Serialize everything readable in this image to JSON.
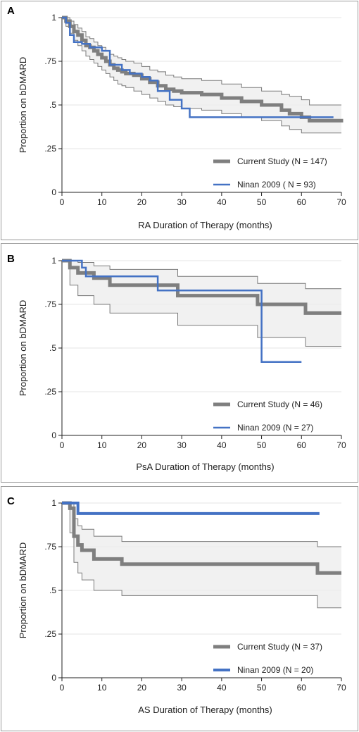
{
  "chart_data": [
    {
      "type": "line",
      "panel": "A",
      "xlabel": "RA Duration of Therapy (months)",
      "ylabel": "Proportion on bDMARD",
      "xlim": [
        0,
        70
      ],
      "ylim": [
        0,
        1
      ],
      "xticks": [
        0,
        10,
        20,
        30,
        40,
        50,
        60,
        70
      ],
      "yticks": [
        0,
        0.25,
        0.5,
        0.75,
        1
      ],
      "ytick_labels": [
        "0",
        ".25",
        ".5",
        ".75",
        "1"
      ],
      "grid": true,
      "legend_position": "bottom-right",
      "series": [
        {
          "name": "Current Study (N = 147)",
          "color": "#7f7f7f",
          "x": [
            0,
            1,
            2,
            3,
            4,
            5,
            6,
            7,
            8,
            9,
            10,
            11,
            12,
            13,
            14,
            15,
            16,
            18,
            20,
            22,
            24,
            26,
            28,
            30,
            35,
            40,
            45,
            50,
            55,
            57,
            60,
            62,
            70
          ],
          "y": [
            1.0,
            0.98,
            0.95,
            0.92,
            0.9,
            0.87,
            0.84,
            0.83,
            0.81,
            0.79,
            0.77,
            0.75,
            0.73,
            0.71,
            0.7,
            0.69,
            0.68,
            0.67,
            0.65,
            0.63,
            0.61,
            0.59,
            0.58,
            0.57,
            0.56,
            0.54,
            0.52,
            0.5,
            0.47,
            0.45,
            0.43,
            0.41,
            0.4
          ],
          "ci_lower": [
            1.0,
            0.95,
            0.91,
            0.87,
            0.84,
            0.81,
            0.78,
            0.76,
            0.74,
            0.72,
            0.7,
            0.68,
            0.66,
            0.64,
            0.62,
            0.61,
            0.6,
            0.58,
            0.56,
            0.54,
            0.52,
            0.5,
            0.49,
            0.48,
            0.47,
            0.45,
            0.43,
            0.41,
            0.38,
            0.36,
            0.34,
            0.34,
            0.34
          ],
          "ci_upper": [
            1.0,
            1.0,
            0.98,
            0.96,
            0.94,
            0.92,
            0.89,
            0.88,
            0.86,
            0.84,
            0.83,
            0.81,
            0.79,
            0.78,
            0.77,
            0.76,
            0.75,
            0.74,
            0.72,
            0.7,
            0.69,
            0.67,
            0.66,
            0.65,
            0.64,
            0.62,
            0.6,
            0.58,
            0.56,
            0.55,
            0.53,
            0.5,
            0.5
          ]
        },
        {
          "name": "Ninan 2009 ( N = 93)",
          "color": "#4472c4",
          "x": [
            0,
            1,
            2,
            3,
            5,
            7,
            10,
            12,
            15,
            17,
            20,
            22,
            24,
            27,
            30,
            32,
            40,
            50,
            68
          ],
          "y": [
            1.0,
            0.97,
            0.9,
            0.86,
            0.85,
            0.83,
            0.81,
            0.73,
            0.7,
            0.68,
            0.66,
            0.64,
            0.58,
            0.53,
            0.48,
            0.43,
            0.43,
            0.43,
            0.43
          ]
        }
      ]
    },
    {
      "type": "line",
      "panel": "B",
      "xlabel": "PsA Duration of Therapy (months)",
      "ylabel": "Proportion on bDMARD",
      "xlim": [
        0,
        70
      ],
      "ylim": [
        0,
        1
      ],
      "xticks": [
        0,
        10,
        20,
        30,
        40,
        50,
        60,
        70
      ],
      "yticks": [
        0,
        0.25,
        0.5,
        0.75,
        1
      ],
      "ytick_labels": [
        "0",
        ".25",
        ".5",
        ".75",
        "1"
      ],
      "grid": true,
      "legend_position": "bottom-right",
      "series": [
        {
          "name": "Current Study (N = 46)",
          "color": "#7f7f7f",
          "x": [
            0,
            2,
            4,
            8,
            12,
            29,
            49,
            61,
            70
          ],
          "y": [
            1.0,
            0.96,
            0.93,
            0.9,
            0.86,
            0.8,
            0.75,
            0.7,
            0.7
          ],
          "ci_lower": [
            1.0,
            0.86,
            0.8,
            0.75,
            0.7,
            0.63,
            0.56,
            0.51,
            0.51
          ],
          "ci_upper": [
            1.0,
            1.0,
            0.99,
            0.97,
            0.95,
            0.91,
            0.87,
            0.84,
            0.84
          ]
        },
        {
          "name": "Ninan 2009 (N = 27)",
          "color": "#4472c4",
          "x": [
            0,
            5,
            6,
            24,
            50,
            60
          ],
          "y": [
            1.0,
            0.96,
            0.91,
            0.83,
            0.42,
            0.42
          ]
        }
      ]
    },
    {
      "type": "line",
      "panel": "C",
      "xlabel": "AS Duration of Therapy (months)",
      "ylabel": "Proportion on bDMARD",
      "xlim": [
        0,
        70
      ],
      "ylim": [
        0,
        1
      ],
      "xticks": [
        0,
        10,
        20,
        30,
        40,
        50,
        60,
        70
      ],
      "yticks": [
        0,
        0.25,
        0.5,
        0.75,
        1
      ],
      "ytick_labels": [
        "0",
        ".25",
        ".5",
        ".75",
        "1"
      ],
      "grid": true,
      "legend_position": "bottom-right",
      "series": [
        {
          "name": "Current Study (N = 37)",
          "color": "#7f7f7f",
          "x": [
            0,
            2,
            3,
            4,
            5,
            8,
            15,
            64,
            70
          ],
          "y": [
            1.0,
            0.97,
            0.81,
            0.76,
            0.73,
            0.68,
            0.65,
            0.6,
            0.6
          ],
          "ci_lower": [
            1.0,
            0.83,
            0.66,
            0.6,
            0.56,
            0.5,
            0.47,
            0.4,
            0.4
          ],
          "ci_upper": [
            1.0,
            1.0,
            0.91,
            0.87,
            0.85,
            0.81,
            0.78,
            0.75,
            0.75
          ]
        },
        {
          "name": "Ninan 2009 (N = 20)",
          "color": "#4472c4",
          "x": [
            0,
            4,
            64.5
          ],
          "y": [
            1.0,
            0.94,
            0.94
          ]
        }
      ]
    }
  ]
}
